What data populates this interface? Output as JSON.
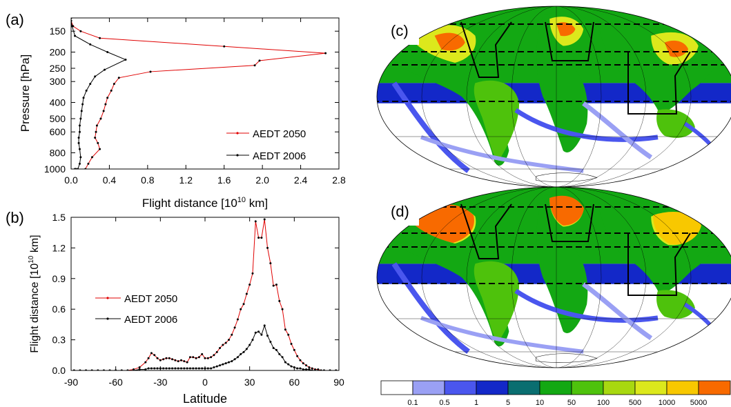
{
  "panels": {
    "a": "(a)",
    "b": "(b)",
    "c": "(c)",
    "d": "(d)"
  },
  "colors": {
    "aedt2050": "#e00000",
    "aedt2006": "#000000"
  },
  "chart_data": [
    {
      "id": "a",
      "type": "line",
      "xlabel": "Flight distance [10^10 km]",
      "xlabel_parts": {
        "main": "Flight distance  [10",
        "sup": "10",
        "tail": " km]"
      },
      "ylabel": "Pressure [hPa]",
      "xlim": [
        0,
        2.8
      ],
      "ylim": [
        1000,
        125
      ],
      "yscale": "log",
      "xticks": [
        "0.0",
        "0.4",
        "0.8",
        "1.2",
        "1.6",
        "2.0",
        "2.4",
        "2.8"
      ],
      "xtick_values": [
        0,
        0.4,
        0.8,
        1.2,
        1.6,
        2.0,
        2.4,
        2.8
      ],
      "yticks": [
        "150",
        "200",
        "250",
        "300",
        "400",
        "500",
        "600",
        "800",
        "1000"
      ],
      "ytick_values": [
        150,
        200,
        250,
        300,
        400,
        500,
        600,
        800,
        1000
      ],
      "legend_position": "lower-right",
      "series": [
        {
          "name": "AEDT 2050",
          "color": "#e00000",
          "x": [
            0.0,
            0.0,
            0.02,
            0.1,
            0.3,
            1.6,
            2.66,
            1.97,
            1.92,
            0.83,
            0.5,
            0.45,
            0.42,
            0.38,
            0.36,
            0.34,
            0.31,
            0.27,
            0.26,
            0.25,
            0.28,
            0.3,
            0.22,
            0.18,
            0.15
          ],
          "y": [
            125,
            130,
            140,
            150,
            165,
            185,
            203,
            225,
            240,
            262,
            285,
            310,
            340,
            375,
            410,
            450,
            500,
            550,
            600,
            650,
            700,
            760,
            850,
            930,
            1000
          ]
        },
        {
          "name": "AEDT 2006",
          "color": "#000000",
          "x": [
            0.0,
            0.0,
            0.01,
            0.04,
            0.2,
            0.38,
            0.57,
            0.35,
            0.25,
            0.2,
            0.16,
            0.13,
            0.12,
            0.11,
            0.1,
            0.09,
            0.09,
            0.08,
            0.08,
            0.09,
            0.1,
            0.09,
            0.07,
            0.05,
            0.04
          ],
          "y": [
            125,
            130,
            140,
            160,
            180,
            200,
            222,
            255,
            280,
            310,
            340,
            375,
            410,
            450,
            500,
            550,
            600,
            650,
            700,
            760,
            850,
            930,
            1000,
            1000,
            1000
          ]
        }
      ]
    },
    {
      "id": "b",
      "type": "line",
      "xlabel": "Latitude",
      "ylabel": "Flight distance [10^10 km]",
      "ylabel_parts": {
        "main": "Flight distance [10",
        "sup": "10",
        "tail": " km]"
      },
      "xlim": [
        -90,
        90
      ],
      "ylim": [
        0,
        1.5
      ],
      "xticks": [
        "-90",
        "-60",
        "-30",
        "0",
        "30",
        "60",
        "90"
      ],
      "xtick_values": [
        -90,
        -60,
        -30,
        0,
        30,
        60,
        90
      ],
      "yticks": [
        "0.0",
        "0.3",
        "0.6",
        "0.9",
        "1.2",
        "1.5"
      ],
      "ytick_values": [
        0,
        0.3,
        0.6,
        0.9,
        1.2,
        1.5
      ],
      "legend_position": "center-left",
      "series": [
        {
          "name": "AEDT 2050",
          "color": "#e00000",
          "x": [
            -88,
            -84,
            -80,
            -76,
            -72,
            -68,
            -64,
            -60,
            -56,
            -52,
            -48,
            -44,
            -40,
            -38,
            -36,
            -34,
            -32,
            -30,
            -28,
            -26,
            -24,
            -22,
            -20,
            -18,
            -16,
            -14,
            -12,
            -10,
            -8,
            -6,
            -4,
            -2,
            0,
            2,
            4,
            6,
            8,
            10,
            12,
            14,
            16,
            18,
            20,
            22,
            24,
            26,
            28,
            30,
            32,
            34,
            36,
            38,
            40,
            42,
            44,
            46,
            48,
            50,
            52,
            54,
            56,
            58,
            60,
            62,
            64,
            66,
            68,
            70,
            72,
            74,
            76,
            78,
            80,
            84,
            88
          ],
          "y": [
            0,
            0,
            0,
            0,
            0,
            0,
            0,
            0,
            0,
            0,
            0.01,
            0.03,
            0.08,
            0.12,
            0.17,
            0.15,
            0.12,
            0.1,
            0.11,
            0.12,
            0.12,
            0.11,
            0.1,
            0.09,
            0.1,
            0.09,
            0.08,
            0.13,
            0.13,
            0.12,
            0.13,
            0.16,
            0.12,
            0.12,
            0.13,
            0.15,
            0.18,
            0.22,
            0.25,
            0.27,
            0.3,
            0.35,
            0.42,
            0.5,
            0.6,
            0.65,
            0.75,
            0.84,
            0.95,
            1.46,
            1.3,
            1.3,
            1.48,
            1.2,
            1.05,
            0.83,
            0.84,
            0.68,
            0.6,
            0.4,
            0.35,
            0.26,
            0.2,
            0.14,
            0.1,
            0.07,
            0.05,
            0.03,
            0.02,
            0.01,
            0.01,
            0,
            0,
            0,
            0
          ]
        },
        {
          "name": "AEDT 2006",
          "color": "#000000",
          "x": [
            -88,
            -84,
            -80,
            -76,
            -72,
            -68,
            -64,
            -60,
            -56,
            -52,
            -48,
            -44,
            -40,
            -38,
            -36,
            -34,
            -32,
            -30,
            -28,
            -26,
            -24,
            -22,
            -20,
            -18,
            -16,
            -14,
            -12,
            -10,
            -8,
            -6,
            -4,
            -2,
            0,
            2,
            4,
            6,
            8,
            10,
            12,
            14,
            16,
            18,
            20,
            22,
            24,
            26,
            28,
            30,
            32,
            34,
            36,
            38,
            40,
            42,
            44,
            46,
            48,
            50,
            52,
            54,
            56,
            58,
            60,
            62,
            64,
            66,
            68,
            70,
            72,
            74,
            76,
            78,
            80,
            84,
            88
          ],
          "y": [
            0,
            0,
            0,
            0,
            0,
            0,
            0,
            0,
            0,
            0,
            0,
            0.01,
            0.01,
            0.02,
            0.02,
            0.02,
            0.02,
            0.02,
            0.02,
            0.02,
            0.02,
            0.02,
            0.02,
            0.02,
            0.02,
            0.02,
            0.02,
            0.02,
            0.02,
            0.02,
            0.02,
            0.02,
            0.02,
            0.02,
            0.02,
            0.03,
            0.04,
            0.05,
            0.06,
            0.07,
            0.08,
            0.09,
            0.11,
            0.13,
            0.16,
            0.18,
            0.21,
            0.25,
            0.3,
            0.37,
            0.38,
            0.35,
            0.44,
            0.34,
            0.28,
            0.22,
            0.2,
            0.16,
            0.13,
            0.08,
            0.06,
            0.04,
            0.03,
            0.02,
            0.02,
            0.01,
            0.01,
            0.01,
            0,
            0,
            0,
            0,
            0,
            0,
            0
          ]
        }
      ]
    },
    {
      "id": "colorbar",
      "type": "heatmap",
      "colors": [
        "#ffffff",
        "#9aa0f4",
        "#4a56ee",
        "#1328c8",
        "#0a6e70",
        "#13a813",
        "#4ec20c",
        "#a8d810",
        "#dce81c",
        "#f8c800",
        "#f86a00",
        "#ff1010"
      ],
      "tick_labels": [
        "0.1",
        "0.5",
        "1",
        "5",
        "10",
        "50",
        "100",
        "500",
        "1000",
        "5000"
      ]
    }
  ]
}
